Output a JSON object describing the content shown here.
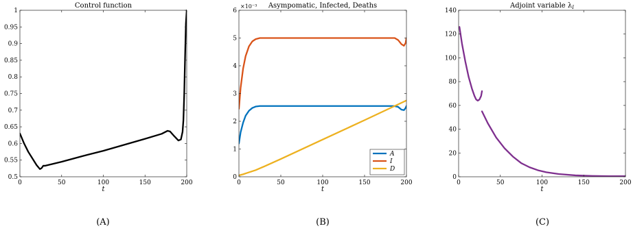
{
  "captions": [
    "(A)",
    "(B)",
    "(C)"
  ],
  "chart_data": [
    {
      "type": "line",
      "title": "Control function",
      "xlabel": "t",
      "ylabel": "",
      "xlim": [
        0,
        200
      ],
      "ylim": [
        0.5,
        1.0
      ],
      "xticks": [
        0,
        50,
        100,
        150,
        200
      ],
      "yticks": [
        0.5,
        0.55,
        0.6,
        0.65,
        0.7,
        0.75,
        0.8,
        0.85,
        0.9,
        0.95,
        1
      ],
      "ytick_labels": [
        "0.5",
        "0.55",
        "0.6",
        "0.65",
        "0.7",
        "0.75",
        "0.8",
        "0.85",
        "0.9",
        "0.95",
        "1"
      ],
      "grid": false,
      "series": [
        {
          "color": "#000000",
          "segments": [
            [
              [
                0,
                0.63
              ],
              [
                5,
                0.6
              ],
              [
                10,
                0.575
              ],
              [
                15,
                0.555
              ],
              [
                20,
                0.535
              ],
              [
                24,
                0.523
              ],
              [
                26,
                0.526
              ],
              [
                28,
                0.533
              ],
              [
                30,
                0.533
              ],
              [
                50,
                0.545
              ],
              [
                75,
                0.562
              ],
              [
                100,
                0.578
              ],
              [
                125,
                0.596
              ],
              [
                150,
                0.614
              ],
              [
                170,
                0.629
              ],
              [
                177,
                0.638
              ],
              [
                180,
                0.636
              ],
              [
                185,
                0.622
              ],
              [
                190,
                0.609
              ],
              [
                193,
                0.612
              ],
              [
                195,
                0.635
              ],
              [
                196,
                0.67
              ],
              [
                197,
                0.75
              ],
              [
                198,
                0.86
              ],
              [
                199,
                0.96
              ],
              [
                200,
                1.0
              ]
            ]
          ]
        }
      ]
    },
    {
      "type": "line",
      "title": "Asympomatic, Infected, Deaths",
      "xlabel": "t",
      "ylabel": "",
      "xlim": [
        0,
        200
      ],
      "ylim": [
        0,
        6
      ],
      "xticks": [
        0,
        50,
        100,
        150,
        200
      ],
      "yticks": [
        0,
        1,
        2,
        3,
        4,
        5,
        6
      ],
      "ytick_labels": [
        "0",
        "1",
        "2",
        "3",
        "4",
        "5",
        "6"
      ],
      "y_multiplier": "×10⁻³",
      "grid": false,
      "legend_position": "bottom-right",
      "series": [
        {
          "name": "A",
          "color": "#0072bd",
          "segments": [
            [
              [
                0,
                1.2
              ],
              [
                2,
                1.6
              ],
              [
                5,
                1.95
              ],
              [
                8,
                2.2
              ],
              [
                12,
                2.38
              ],
              [
                16,
                2.48
              ],
              [
                20,
                2.53
              ],
              [
                25,
                2.55
              ],
              [
                30,
                2.55
              ],
              [
                100,
                2.55
              ],
              [
                150,
                2.55
              ],
              [
                185,
                2.55
              ],
              [
                190,
                2.52
              ],
              [
                194,
                2.42
              ],
              [
                197,
                2.4
              ],
              [
                199,
                2.48
              ],
              [
                200,
                2.55
              ]
            ]
          ]
        },
        {
          "name": "I",
          "color": "#d95319",
          "segments": [
            [
              [
                0,
                2.45
              ],
              [
                2,
                3.2
              ],
              [
                5,
                3.9
              ],
              [
                8,
                4.35
              ],
              [
                12,
                4.7
              ],
              [
                16,
                4.88
              ],
              [
                20,
                4.96
              ],
              [
                25,
                5.0
              ],
              [
                30,
                5.0
              ],
              [
                100,
                5.0
              ],
              [
                150,
                5.0
              ],
              [
                186,
                5.0
              ],
              [
                190,
                4.93
              ],
              [
                194,
                4.78
              ],
              [
                197,
                4.72
              ],
              [
                199,
                4.82
              ],
              [
                200,
                5.0
              ]
            ]
          ]
        },
        {
          "name": "D",
          "color": "#edb120",
          "segments": [
            [
              [
                0,
                0.05
              ],
              [
                5,
                0.09
              ],
              [
                10,
                0.14
              ],
              [
                20,
                0.24
              ],
              [
                30,
                0.37
              ],
              [
                50,
                0.64
              ],
              [
                100,
                1.34
              ],
              [
                150,
                2.04
              ],
              [
                200,
                2.75
              ]
            ]
          ]
        }
      ]
    },
    {
      "type": "line",
      "title": "Adjoint variable λ",
      "title_subscript": "I",
      "xlabel": "t",
      "ylabel": "",
      "xlim": [
        0,
        200
      ],
      "ylim": [
        0,
        140
      ],
      "xticks": [
        0,
        50,
        100,
        150,
        200
      ],
      "yticks": [
        0,
        20,
        40,
        60,
        80,
        100,
        120,
        140
      ],
      "ytick_labels": [
        "0",
        "20",
        "40",
        "60",
        "80",
        "100",
        "120",
        "140"
      ],
      "grid": false,
      "series": [
        {
          "color": "#7e2f8e",
          "segments": [
            [
              [
                1,
                126
              ],
              [
                4,
                112
              ],
              [
                8,
                97
              ],
              [
                12,
                84
              ],
              [
                16,
                74
              ],
              [
                19,
                68
              ],
              [
                21,
                65
              ],
              [
                23,
                64
              ],
              [
                25,
                65
              ],
              [
                27,
                68
              ],
              [
                28,
                72
              ]
            ],
            [
              [
                28,
                55
              ],
              [
                35,
                45
              ],
              [
                45,
                33
              ],
              [
                55,
                24
              ],
              [
                65,
                17
              ],
              [
                75,
                11.5
              ],
              [
                85,
                8
              ],
              [
                95,
                5.5
              ],
              [
                105,
                3.8
              ],
              [
                120,
                2.3
              ],
              [
                140,
                1.2
              ],
              [
                160,
                0.7
              ],
              [
                180,
                0.5
              ],
              [
                200,
                0.5
              ]
            ]
          ]
        }
      ]
    }
  ]
}
